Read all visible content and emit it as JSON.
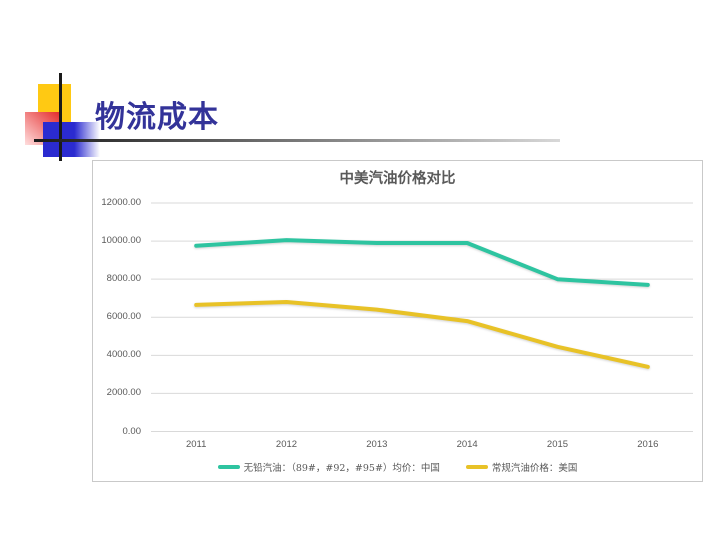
{
  "slide": {
    "title": "物流成本"
  },
  "colors": {
    "title_text": "#333399",
    "chart_text": "#595959",
    "gridline": "#d9d9d9",
    "chart_border": "#c9c9c9",
    "deco_yellow": "#ffc913",
    "deco_red_start": "#e32525",
    "deco_red_end": "#ffdede",
    "deco_blue": "#2b2bd0",
    "line_dark": "#1a1a1a",
    "underline_fade_end": "#d8d8d8",
    "series_china": "#2ec4a0",
    "series_usa": "#e8c227"
  },
  "chart_data": {
    "type": "line",
    "title": "中美汽油价格对比",
    "categories": [
      "2011",
      "2012",
      "2013",
      "2014",
      "2015",
      "2016"
    ],
    "series": [
      {
        "name": "无铅汽油：（89#，#92，#95#）均价：中国",
        "color": "#2ec4a0",
        "values": [
          9750,
          10050,
          9900,
          9900,
          8000,
          7700
        ]
      },
      {
        "name": "常规汽油价格：美国",
        "color": "#e8c227",
        "values": [
          6650,
          6800,
          6400,
          5800,
          4450,
          3400
        ]
      }
    ],
    "xlabel": "",
    "ylabel": "",
    "ylim": [
      0,
      12000
    ],
    "ytick_values": [
      12000,
      10000,
      8000,
      6000,
      4000,
      2000,
      0
    ],
    "ytick_labels": [
      "12000.00",
      "10000.00",
      "8000.00",
      "6000.00",
      "4000.00",
      "2000.00",
      "0.00"
    ],
    "grid": true,
    "legend_position": "bottom"
  }
}
